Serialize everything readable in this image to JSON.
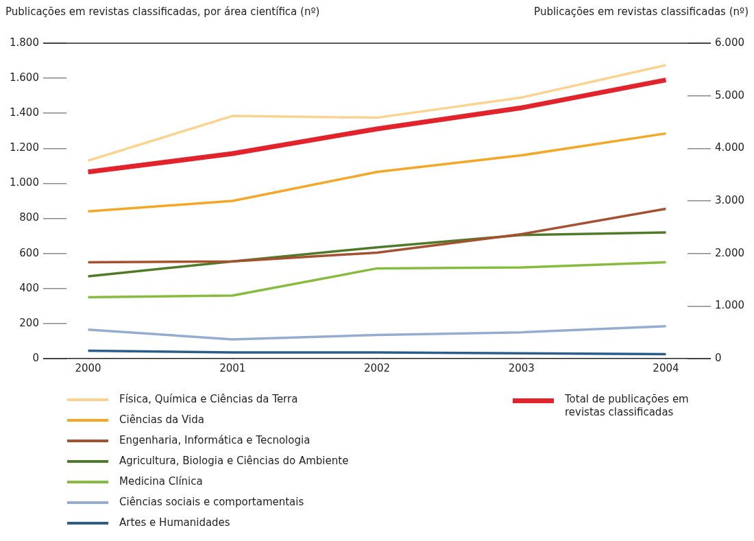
{
  "chart_data": {
    "type": "line",
    "ylabel": "Publicações em revistas classificadas, por área científica (nº)",
    "y2label": "Publicações em revistas classificadas (nº)",
    "x": [
      2000,
      2001,
      2002,
      2003,
      2004
    ],
    "xlim": [
      1999.85,
      2004.15
    ],
    "xticks": [
      2000,
      2001,
      2002,
      2003,
      2004
    ],
    "ylim": [
      0,
      1800
    ],
    "yticks": [
      {
        "value": 0,
        "label": "0"
      },
      {
        "value": 200,
        "label": "200"
      },
      {
        "value": 400,
        "label": "400"
      },
      {
        "value": 600,
        "label": "600"
      },
      {
        "value": 800,
        "label": "800"
      },
      {
        "value": 1000,
        "label": "1.000"
      },
      {
        "value": 1200,
        "label": "1.200"
      },
      {
        "value": 1400,
        "label": "1.400"
      },
      {
        "value": 1600,
        "label": "1.600"
      },
      {
        "value": 1800,
        "label": "1.800"
      }
    ],
    "y2lim": [
      0,
      6000
    ],
    "y2ticks": [
      {
        "value": 0,
        "label": "0"
      },
      {
        "value": 1000,
        "label": "1.000"
      },
      {
        "value": 2000,
        "label": "2.000"
      },
      {
        "value": 3000,
        "label": "3.000"
      },
      {
        "value": 4000,
        "label": "4.000"
      },
      {
        "value": 5000,
        "label": "5.000"
      },
      {
        "value": 6000,
        "label": "6.000"
      }
    ],
    "legend": "bottom",
    "marker": "none",
    "series": [
      {
        "name": "Física, Química e Ciências da Terra",
        "color": "#fbd38f",
        "values": [
          1130,
          1385,
          1375,
          1490,
          1675
        ]
      },
      {
        "name": "Ciências da Vida",
        "color": "#f5a623",
        "values": [
          840,
          900,
          1065,
          1160,
          1285
        ]
      },
      {
        "name": "Engenharia, Informática e Tecnologia",
        "color": "#a5502f",
        "values": [
          550,
          555,
          605,
          710,
          855
        ]
      },
      {
        "name": "Agricultura, Biologia e Ciências do Ambiente",
        "color": "#4f7a28",
        "values": [
          470,
          555,
          635,
          705,
          720
        ]
      },
      {
        "name": "Medicina Clínica",
        "color": "#86bc3c",
        "values": [
          350,
          360,
          515,
          520,
          550
        ]
      },
      {
        "name": "Ciências sociais e comportamentais",
        "color": "#93acd0",
        "values": [
          165,
          110,
          135,
          150,
          185
        ]
      },
      {
        "name": "Artes e Humanidades",
        "color": "#2a5d8a",
        "values": [
          45,
          35,
          35,
          30,
          25
        ]
      },
      {
        "name": "Total de publicações em revistas classificadas",
        "color": "#e3232c",
        "axis": "y2",
        "values": [
          3550,
          3900,
          4370,
          4770,
          5300
        ]
      }
    ]
  }
}
